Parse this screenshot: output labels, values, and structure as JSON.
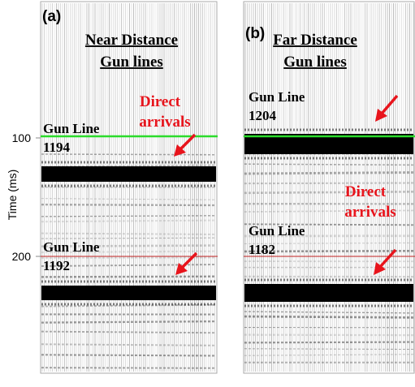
{
  "y_axis": {
    "label": "Time (ms)",
    "ticks": [
      100,
      200
    ]
  },
  "panels": [
    {
      "label": "(a)",
      "title": [
        "Near Distance",
        "Gun lines"
      ],
      "annotation": [
        "Direct",
        "arrivals"
      ],
      "gun_lines": [
        {
          "name": "Gun Line",
          "number": "1194"
        },
        {
          "name": "Gun Line",
          "number": "1192"
        }
      ]
    },
    {
      "label": "(b)",
      "title": [
        "Far Distance",
        "Gun lines"
      ],
      "annotation": [
        "Direct",
        "arrivals"
      ],
      "gun_lines": [
        {
          "name": "Gun Line",
          "number": "1204"
        },
        {
          "name": "Gun Line",
          "number": "1182"
        }
      ]
    }
  ]
}
